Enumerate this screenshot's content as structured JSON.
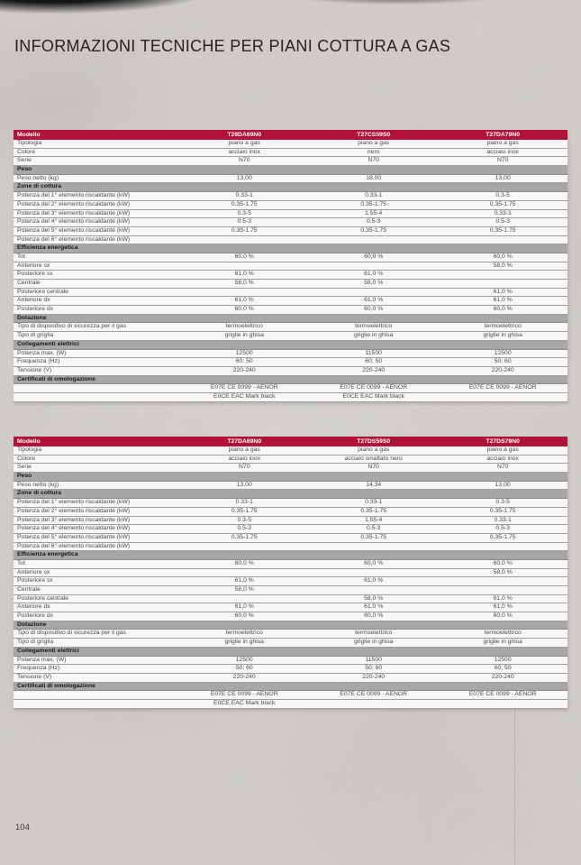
{
  "page": {
    "title": "INFORMAZIONI TECNICHE PER PIANI COTTURA A GAS",
    "page_number": "104"
  },
  "colors": {
    "header_red": "#b01238",
    "section_gray": "#a9a7a5",
    "row_bg": "#f8f7f5"
  },
  "tables": [
    {
      "header_label": "Modello",
      "models": [
        "T29DA69N0",
        "T27CS59S0",
        "T27DA79N0"
      ],
      "rows": [
        {
          "type": "data",
          "label": "Tipologia",
          "values": [
            "piano a gas",
            "piano a gas",
            "piano a gas"
          ]
        },
        {
          "type": "data",
          "label": "Colore",
          "values": [
            "acciaio inox",
            "nero",
            "acciaio inox"
          ]
        },
        {
          "type": "data",
          "label": "Serie",
          "values": [
            "N70",
            "N70",
            "N70"
          ]
        },
        {
          "type": "section",
          "label": "Peso"
        },
        {
          "type": "data",
          "label": "Peso netto (kg)",
          "values": [
            "13,00",
            "18,00",
            "13,00"
          ]
        },
        {
          "type": "section",
          "label": "Zone di cottura"
        },
        {
          "type": "data",
          "label": "Potenza del 1° elemento riscaldante (kW)",
          "values": [
            "0.33-1",
            "0.33-1",
            "0.3-5"
          ]
        },
        {
          "type": "data",
          "label": "Potenza del 2° elemento riscaldante (kW)",
          "values": [
            "0.35-1.75",
            "0.35-1.75",
            "0.35-1.75"
          ]
        },
        {
          "type": "data",
          "label": "Potenza del 3° elemento riscaldante (kW)",
          "values": [
            "0.3-5",
            "1.55-4",
            "0.33-1"
          ]
        },
        {
          "type": "data",
          "label": "Potenza del 4° elemento riscaldante (kW)",
          "values": [
            "0.5-3",
            "0.5-3",
            "0.5-3"
          ]
        },
        {
          "type": "data",
          "label": "Potenza del 5° elemento riscaldante (kW)",
          "values": [
            "0.35-1.75",
            "0.35-1.75",
            "0.35-1.75"
          ]
        },
        {
          "type": "data",
          "label": "Potenza del 6° elemento riscaldante (kW)",
          "values": [
            "",
            "",
            ""
          ]
        },
        {
          "type": "section",
          "label": "Efficienza energetica"
        },
        {
          "type": "data",
          "label": "Tot",
          "values": [
            "60,0 %",
            "60,0 %",
            "60,0 %"
          ]
        },
        {
          "type": "data",
          "label": "Anteriore sx",
          "values": [
            "",
            "",
            "58,0 %"
          ]
        },
        {
          "type": "data",
          "label": "Posteriore sx",
          "values": [
            "61,0 %",
            "61,0 %",
            ""
          ]
        },
        {
          "type": "data",
          "label": "Centrale",
          "values": [
            "58,0 %",
            "58,0 %",
            ""
          ]
        },
        {
          "type": "data",
          "label": "Posteriore centrale",
          "values": [
            "",
            "",
            "61,0 %"
          ]
        },
        {
          "type": "data",
          "label": "Anteriore dx",
          "values": [
            "61,0 %",
            "61,0 %",
            "61,0 %"
          ]
        },
        {
          "type": "data",
          "label": "Posteriore dx",
          "values": [
            "60,0 %",
            "60,0 %",
            "60,0 %"
          ]
        },
        {
          "type": "section",
          "label": "Dotazione"
        },
        {
          "type": "data",
          "label": "Tipo di dispositivo di sicurezza per il gas",
          "values": [
            "termoelettrico",
            "termoelettrico",
            "termoelettrico"
          ]
        },
        {
          "type": "data",
          "label": "Tipo di griglia",
          "values": [
            "griglie in ghisa",
            "griglie in ghisa",
            "griglie in ghisa"
          ]
        },
        {
          "type": "section",
          "label": "Collegamenti elettrici"
        },
        {
          "type": "data",
          "label": "Potenza max. (W)",
          "values": [
            "12500",
            "11500",
            "12500"
          ]
        },
        {
          "type": "data",
          "label": "Frequenza (Hz)",
          "values": [
            "60; 50",
            "60; 50",
            "50; 60"
          ]
        },
        {
          "type": "data",
          "label": "Tensione (V)",
          "values": [
            "220-240",
            "220-240",
            "220-240"
          ]
        },
        {
          "type": "section",
          "label": "Certificati di omologazione"
        },
        {
          "type": "cert",
          "values": [
            "E07E CE 0099 - AENOR",
            "E07E CE 0099 - AENOR",
            "E07E CE 0099 - AENOR"
          ]
        },
        {
          "type": "cert",
          "values": [
            "E0CE EAC Mark black",
            "E0CE EAC Mark black",
            ""
          ]
        }
      ]
    },
    {
      "header_label": "Modello",
      "models": [
        "T27DA69N0",
        "T27DS59S0",
        "T27DS79N0"
      ],
      "rows": [
        {
          "type": "data",
          "label": "Tipologia",
          "values": [
            "piano a gas",
            "piano a gas",
            "piano a gas"
          ]
        },
        {
          "type": "data",
          "label": "Colore",
          "values": [
            "acciaio inox",
            "acciaio smaltato nero",
            "acciaio inox"
          ]
        },
        {
          "type": "data",
          "label": "Serie",
          "values": [
            "N70",
            "N70",
            "N70"
          ]
        },
        {
          "type": "section",
          "label": "Peso"
        },
        {
          "type": "data",
          "label": "Peso netto (kg)",
          "values": [
            "13,00",
            "14,34",
            "13,00"
          ]
        },
        {
          "type": "section",
          "label": "Zone di cottura"
        },
        {
          "type": "data",
          "label": "Potenza del 1° elemento riscaldante (kW)",
          "values": [
            "0.33-1",
            "0.33-1",
            "0.3-5"
          ]
        },
        {
          "type": "data",
          "label": "Potenza del 2° elemento riscaldante (kW)",
          "values": [
            "0.35-1.75",
            "0.35-1.75",
            "0.35-1.75"
          ]
        },
        {
          "type": "data",
          "label": "Potenza del 3° elemento riscaldante (kW)",
          "values": [
            "0.3-5",
            "1.55-4",
            "0.33-1"
          ]
        },
        {
          "type": "data",
          "label": "Potenza del 4° elemento riscaldante (kW)",
          "values": [
            "0.5-3",
            "0.5-3",
            "0.5-3"
          ]
        },
        {
          "type": "data",
          "label": "Potenza del 5° elemento riscaldante (kW)",
          "values": [
            "0.35-1.75",
            "0.35-1.75",
            "0.35-1.75"
          ]
        },
        {
          "type": "data",
          "label": "Potenza del 6° elemento riscaldante (kW)",
          "values": [
            "",
            "",
            ""
          ]
        },
        {
          "type": "section",
          "label": "Efficienza energetica"
        },
        {
          "type": "data",
          "label": "Tot",
          "values": [
            "60,0 %",
            "60,0 %",
            "60,0 %"
          ]
        },
        {
          "type": "data",
          "label": "Anteriore sx",
          "values": [
            "",
            "",
            "58,0 %"
          ]
        },
        {
          "type": "data",
          "label": "Posteriore sx",
          "values": [
            "61,0 %",
            "61,0 %",
            ""
          ]
        },
        {
          "type": "data",
          "label": "Centrale",
          "values": [
            "58,0 %",
            "",
            ""
          ]
        },
        {
          "type": "data",
          "label": "Posteriore centrale",
          "values": [
            "",
            "58,0 %",
            "61,0 %"
          ]
        },
        {
          "type": "data",
          "label": "Anteriore dx",
          "values": [
            "61,0 %",
            "61,0 %",
            "61,0 %"
          ]
        },
        {
          "type": "data",
          "label": "Posteriore dx",
          "values": [
            "60,0 %",
            "60,0 %",
            "60,0 %"
          ]
        },
        {
          "type": "section",
          "label": "Dotazione"
        },
        {
          "type": "data",
          "label": "Tipo di dispositivo di sicurezza per il gas",
          "values": [
            "termoelettrico",
            "termoelettrico",
            "termoelettrico"
          ]
        },
        {
          "type": "data",
          "label": "Tipo di griglia",
          "values": [
            "griglie in ghisa",
            "griglie in ghisa",
            "griglie in ghisa"
          ]
        },
        {
          "type": "section",
          "label": "Collegamenti elettrici"
        },
        {
          "type": "data",
          "label": "Potenza max. (W)",
          "values": [
            "12500",
            "11500",
            "12500"
          ]
        },
        {
          "type": "data",
          "label": "Frequenza (Hz)",
          "values": [
            "50; 60",
            "50; 60",
            "60; 50"
          ]
        },
        {
          "type": "data",
          "label": "Tensione (V)",
          "values": [
            "220-240",
            "220-240",
            "220-240"
          ]
        },
        {
          "type": "section",
          "label": "Certificati di omologazione"
        },
        {
          "type": "cert",
          "values": [
            "E07E CE 0099 - AENOR",
            "E07E CE 0099 - AENOR",
            "E07E CE 0099 - AENOR"
          ]
        },
        {
          "type": "cert",
          "values": [
            "E0CE EAC Mark black",
            "",
            ""
          ]
        }
      ]
    }
  ]
}
